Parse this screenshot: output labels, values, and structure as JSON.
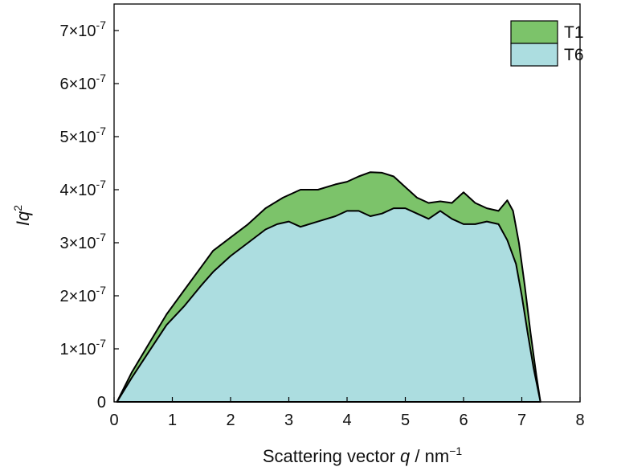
{
  "chart_data": {
    "type": "area",
    "xlabel": {
      "main": "Scattering vector ",
      "var": "q",
      "unit": " / nm",
      "sup": "−1"
    },
    "ylabel": {
      "main": "Iq",
      "sup": "2"
    },
    "xlim": [
      0,
      8
    ],
    "ylim": [
      0,
      7.5e-07
    ],
    "x_ticks": [
      {
        "value": 0,
        "label": "0"
      },
      {
        "value": 1,
        "label": "1"
      },
      {
        "value": 2,
        "label": "2"
      },
      {
        "value": 3,
        "label": "3"
      },
      {
        "value": 4,
        "label": "4"
      },
      {
        "value": 5,
        "label": "5"
      },
      {
        "value": 6,
        "label": "6"
      },
      {
        "value": 7,
        "label": "7"
      },
      {
        "value": 8,
        "label": "8"
      }
    ],
    "y_ticks": [
      {
        "value": 0,
        "label": "0",
        "exp": ""
      },
      {
        "value": 1e-07,
        "label": "1×10",
        "exp": "-7"
      },
      {
        "value": 2e-07,
        "label": "2×10",
        "exp": "-7"
      },
      {
        "value": 3e-07,
        "label": "3×10",
        "exp": "-7"
      },
      {
        "value": 4e-07,
        "label": "4×10",
        "exp": "-7"
      },
      {
        "value": 5e-07,
        "label": "5×10",
        "exp": "-7"
      },
      {
        "value": 6e-07,
        "label": "6×10",
        "exp": "-7"
      },
      {
        "value": 7e-07,
        "label": "7×10",
        "exp": "-7"
      }
    ],
    "grid": false,
    "legend_position": "top-right",
    "series": [
      {
        "name": "T1",
        "color": "#7cc36a",
        "x": [
          0.05,
          0.3,
          0.6,
          0.9,
          1.2,
          1.5,
          1.7,
          2.0,
          2.3,
          2.6,
          2.9,
          3.2,
          3.5,
          3.8,
          4.0,
          4.2,
          4.4,
          4.6,
          4.8,
          5.0,
          5.2,
          5.4,
          5.6,
          5.8,
          6.0,
          6.2,
          6.4,
          6.6,
          6.75,
          6.85,
          6.95,
          7.05,
          7.15,
          7.25,
          7.32
        ],
        "values": [
          0,
          5.5e-08,
          1.1e-07,
          1.65e-07,
          2.1e-07,
          2.55e-07,
          2.85e-07,
          3.1e-07,
          3.35e-07,
          3.65e-07,
          3.85e-07,
          4e-07,
          4e-07,
          4.1e-07,
          4.15e-07,
          4.25e-07,
          4.33e-07,
          4.32e-07,
          4.25e-07,
          4.05e-07,
          3.85e-07,
          3.75e-07,
          3.78e-07,
          3.75e-07,
          3.95e-07,
          3.75e-07,
          3.65e-07,
          3.6e-07,
          3.8e-07,
          3.6e-07,
          3e-07,
          2.2e-07,
          1.3e-07,
          5e-08,
          0
        ]
      },
      {
        "name": "T6",
        "color": "#acdde0",
        "x": [
          0.05,
          0.3,
          0.6,
          0.9,
          1.2,
          1.5,
          1.7,
          2.0,
          2.3,
          2.6,
          2.8,
          3.0,
          3.2,
          3.5,
          3.8,
          4.0,
          4.2,
          4.4,
          4.6,
          4.8,
          5.0,
          5.2,
          5.4,
          5.6,
          5.8,
          6.0,
          6.2,
          6.4,
          6.6,
          6.75,
          6.9,
          7.0,
          7.1,
          7.2,
          7.32
        ],
        "values": [
          0,
          4.5e-08,
          9.5e-08,
          1.45e-07,
          1.8e-07,
          2.2e-07,
          2.45e-07,
          2.75e-07,
          3e-07,
          3.25e-07,
          3.35e-07,
          3.4e-07,
          3.3e-07,
          3.4e-07,
          3.5e-07,
          3.6e-07,
          3.6e-07,
          3.5e-07,
          3.55e-07,
          3.65e-07,
          3.65e-07,
          3.55e-07,
          3.45e-07,
          3.6e-07,
          3.45e-07,
          3.35e-07,
          3.35e-07,
          3.4e-07,
          3.35e-07,
          3.05e-07,
          2.6e-07,
          2e-07,
          1.3e-07,
          6.5e-08,
          0
        ]
      }
    ]
  }
}
